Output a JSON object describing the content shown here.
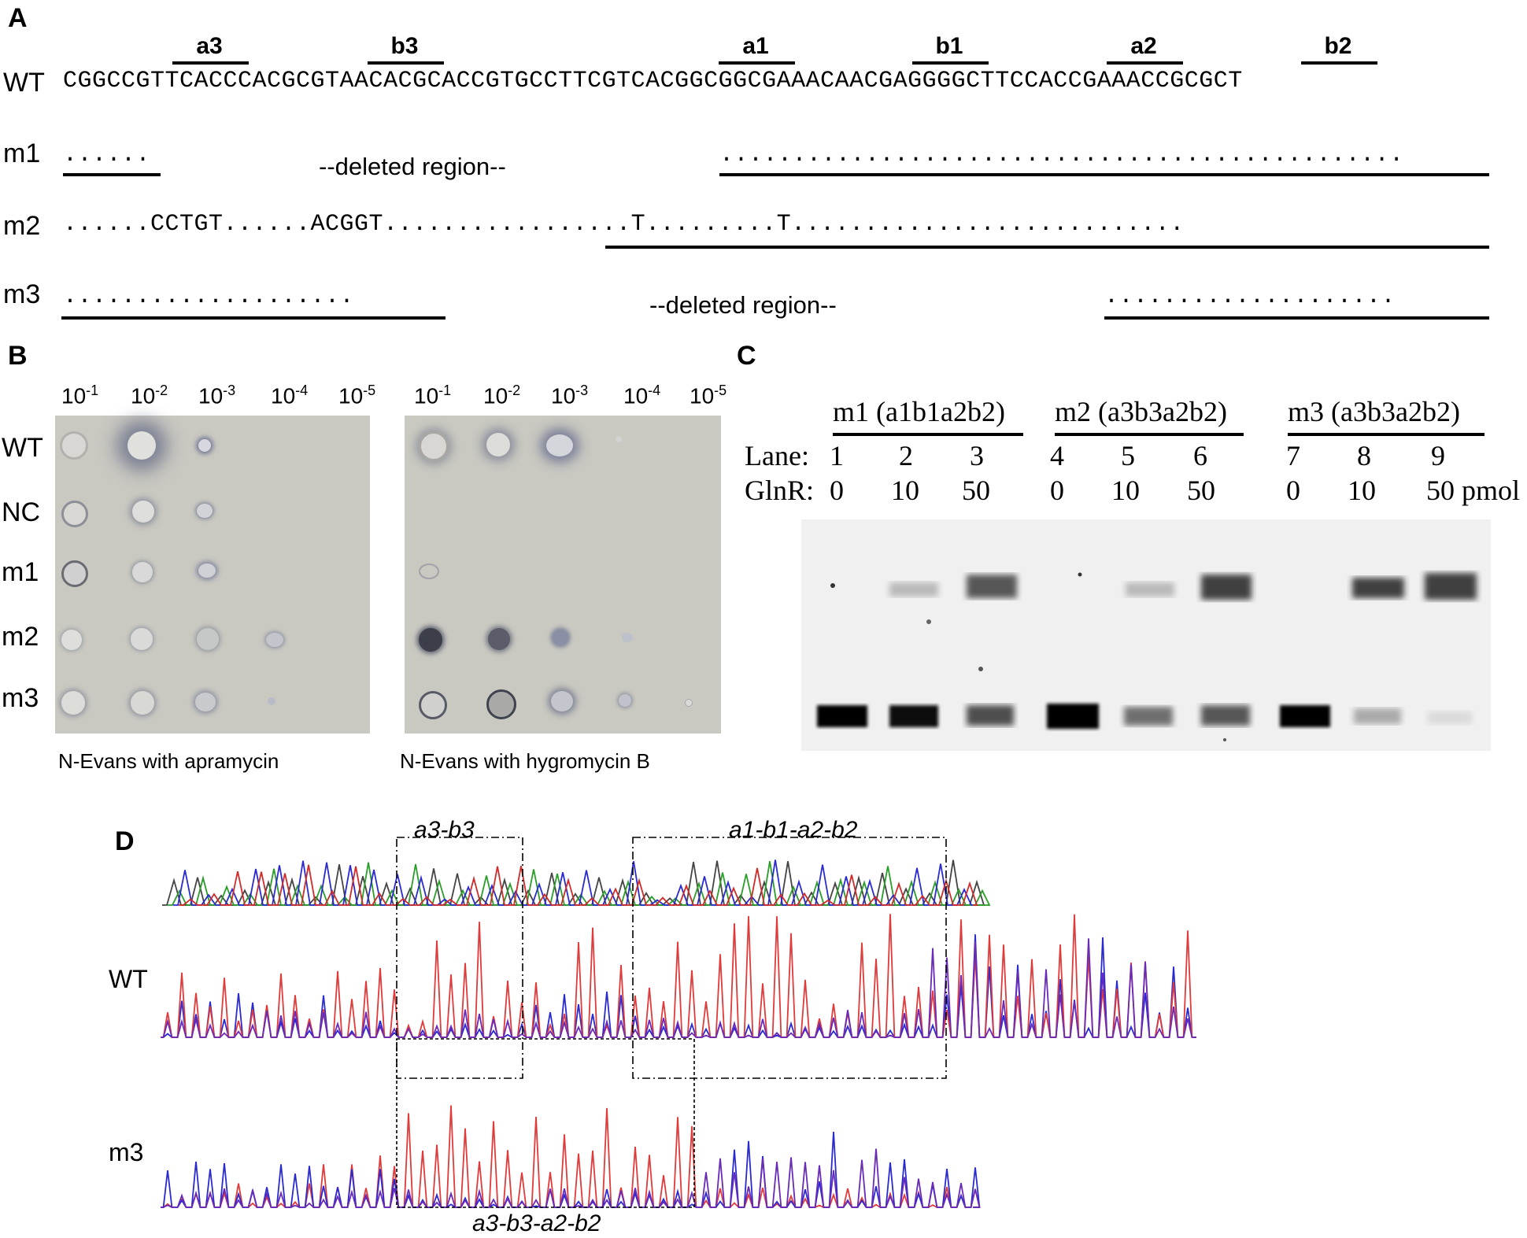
{
  "panel_a": {
    "letter": "A",
    "sites": [
      "a3",
      "b3",
      "a1",
      "b1",
      "a2",
      "b2"
    ],
    "rows": [
      {
        "label": "WT",
        "sequence": "CGGCCGTTCACCCACGCGTAACACGCACCGTGCCTTCGTCACGGCGGCGAAACAACGAGGGGCTTCCACCGAAACCGCGCT"
      },
      {
        "label": "m1",
        "left": "......",
        "deleted": "--deleted region--",
        "right": "..............................................."
      },
      {
        "label": "m2",
        "sequence": "......CCTGT......ACGGT.................T.........T..........................."
      },
      {
        "label": "m3",
        "left": "....................",
        "deleted": "--deleted region--",
        "right": "...................."
      }
    ]
  },
  "panel_b": {
    "letter": "B",
    "dilutions": [
      "10",
      "10",
      "10",
      "10",
      "10"
    ],
    "exponents": [
      "-1",
      "-2",
      "-3",
      "-4",
      "-5"
    ],
    "strains": [
      "WT",
      "NC",
      "m1",
      "m2",
      "m3"
    ],
    "captions": [
      "N-Evans with apramycin",
      "N-Evans with hygromycin B"
    ]
  },
  "panel_c": {
    "letter": "C",
    "groups": [
      "m1 (a1b1a2b2)",
      "m2 (a3b3a2b2)",
      "m3 (a3b3a2b2)"
    ],
    "lane_label": "Lane:",
    "lanes": [
      "1",
      "2",
      "3",
      "4",
      "5",
      "6",
      "7",
      "8",
      "9"
    ],
    "glnr_label": "GlnR:",
    "glnr_amounts": [
      "0",
      "10",
      "50",
      "0",
      "10",
      "50",
      "0",
      "10",
      "50 pmol"
    ]
  },
  "panel_d": {
    "letter": "D",
    "top_boxes": [
      "a3-b3",
      "a1-b1-a2-b2"
    ],
    "traces": [
      "WT",
      "m3"
    ],
    "bottom_box": "a3-b3-a2-b2"
  }
}
